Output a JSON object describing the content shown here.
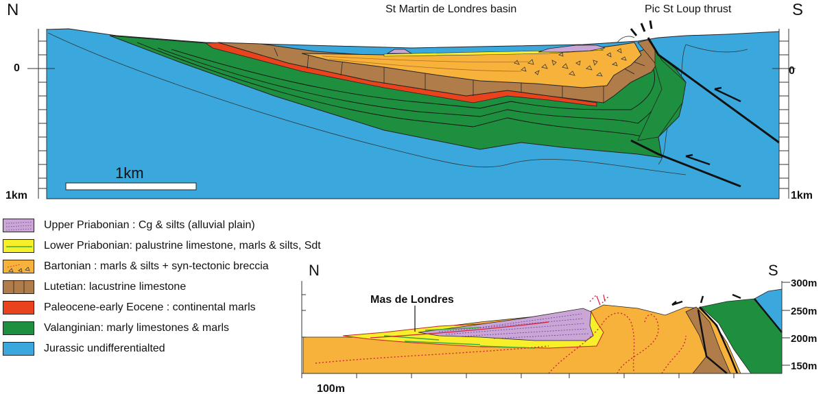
{
  "colors": {
    "jurassic": "#3aa8dc",
    "valanginian": "#1e8f3e",
    "paleocene": "#e8431c",
    "lutetian": "#b07d4a",
    "bartonian": "#f6b23b",
    "lower_priabonian": "#f6ef2a",
    "upper_priabonian": "#c9a6d6",
    "fault": "#111111"
  },
  "main_section": {
    "north_label": "N",
    "south_label": "S",
    "basin_label": "St Martin de Londres basin",
    "thrust_label": "Pic St Loup thrust",
    "depth_zero_left": "0",
    "depth_zero_right": "0",
    "depth_bottom_left": "1km",
    "depth_bottom_right": "1km",
    "scale_label": "1km"
  },
  "legend": [
    {
      "key": "upper_priabonian",
      "label": "Upper Priabonian : Cg & silts (alluvial plain)"
    },
    {
      "key": "lower_priabonian",
      "label": "Lower Priabonian: palustrine limestone, marls & silts, Sdt"
    },
    {
      "key": "bartonian",
      "label": "Bartonian : marls & silts + syn-tectonic breccia"
    },
    {
      "key": "lutetian",
      "label": "Lutetian: lacustrine limestone"
    },
    {
      "key": "paleocene",
      "label": "Paleocene-early Eocene : continental marls"
    },
    {
      "key": "valanginian",
      "label": "Valanginian: marly limestones & marls"
    },
    {
      "key": "jurassic",
      "label": "Jurassic undifferentialted"
    }
  ],
  "detail_section": {
    "north_label": "N",
    "south_label": "S",
    "locality_label": "Mas de Londres",
    "scale_label": "100m",
    "elev_300": "300m",
    "elev_250": "250m",
    "elev_200": "200m",
    "elev_150": "150m"
  }
}
